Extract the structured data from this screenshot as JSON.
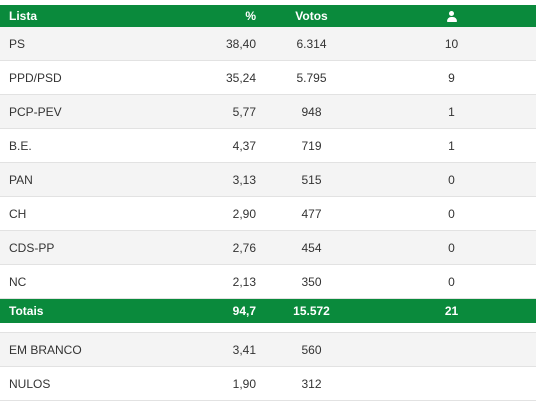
{
  "header": {
    "lista": "Lista",
    "pct": "%",
    "votos": "Votos",
    "mandates_icon": "person-icon"
  },
  "rows": [
    {
      "lista": "PS",
      "pct": "38,40",
      "votos": "6.314",
      "mandatos": "10"
    },
    {
      "lista": "PPD/PSD",
      "pct": "35,24",
      "votos": "5.795",
      "mandatos": "9"
    },
    {
      "lista": "PCP-PEV",
      "pct": "5,77",
      "votos": "948",
      "mandatos": "1"
    },
    {
      "lista": "B.E.",
      "pct": "4,37",
      "votos": "719",
      "mandatos": "1"
    },
    {
      "lista": "PAN",
      "pct": "3,13",
      "votos": "515",
      "mandatos": "0"
    },
    {
      "lista": "CH",
      "pct": "2,90",
      "votos": "477",
      "mandatos": "0"
    },
    {
      "lista": "CDS-PP",
      "pct": "2,76",
      "votos": "454",
      "mandatos": "0"
    },
    {
      "lista": "NC",
      "pct": "2,13",
      "votos": "350",
      "mandatos": "0"
    }
  ],
  "totals": {
    "lista": "Totais",
    "pct": "94,7",
    "votos": "15.572",
    "mandatos": "21"
  },
  "extra_rows": [
    {
      "lista": "EM BRANCO",
      "pct": "3,41",
      "votos": "560"
    },
    {
      "lista": "NULOS",
      "pct": "1,90",
      "votos": "312"
    }
  ],
  "colors": {
    "header_bg": "#0a8a3c",
    "alt_row_bg": "#f4f4f4",
    "text": "#333333"
  }
}
